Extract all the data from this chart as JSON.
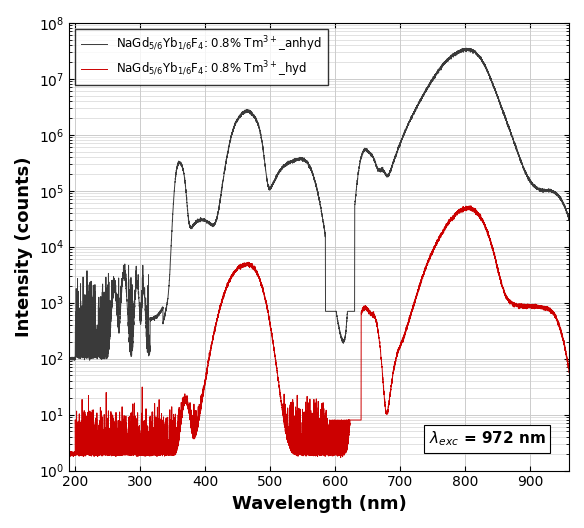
{
  "xlabel": "Wavelength (nm)",
  "ylabel": "Intensity (counts)",
  "xlim": [
    190,
    960
  ],
  "ylim": [
    1.0,
    100000000.0
  ],
  "legend1": "NaGd$_{5/6}$Yb$_{1/6}$F$_4$: 0.8% Tm$^{3+}$_anhyd",
  "legend2": "NaGd$_{5/6}$Yb$_{1/6}$F$_4$: 0.8% Tm$^{3+}$_hyd",
  "color1": "#3a3a3a",
  "color2": "#cc0000",
  "grid_color": "#cccccc",
  "linewidth": 0.7,
  "xticks": [
    200,
    300,
    400,
    500,
    600,
    700,
    800,
    900
  ]
}
